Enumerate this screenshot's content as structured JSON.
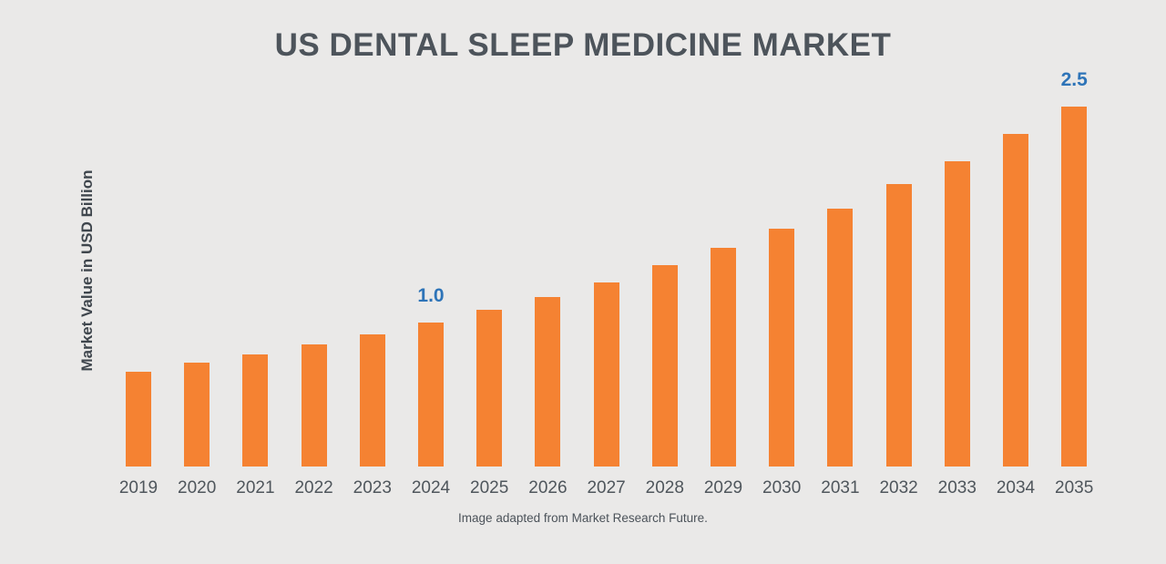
{
  "chart_data": {
    "type": "bar",
    "title": "US DENTAL SLEEP MEDICINE MARKET",
    "ylabel": "Market Value in USD Billion",
    "xlabel": "",
    "categories": [
      "2019",
      "2020",
      "2021",
      "2022",
      "2023",
      "2024",
      "2025",
      "2026",
      "2027",
      "2028",
      "2029",
      "2030",
      "2031",
      "2032",
      "2033",
      "2034",
      "2035"
    ],
    "values": [
      0.66,
      0.72,
      0.78,
      0.85,
      0.92,
      1.0,
      1.09,
      1.18,
      1.28,
      1.4,
      1.52,
      1.65,
      1.79,
      1.96,
      2.12,
      2.31,
      2.5
    ],
    "data_labels": {
      "2024": "1.0",
      "2035": "2.5"
    },
    "ylim": [
      0,
      2.5
    ],
    "grid": false,
    "legend": false,
    "bar_color": "#F58232",
    "value_label_color": "#2E74B8"
  },
  "footer": {
    "text": "Image adapted from Market Research Future."
  },
  "colors": {
    "background": "#EAE9E8",
    "title_text": "#4D545B",
    "axis_text": "#4F565C"
  }
}
